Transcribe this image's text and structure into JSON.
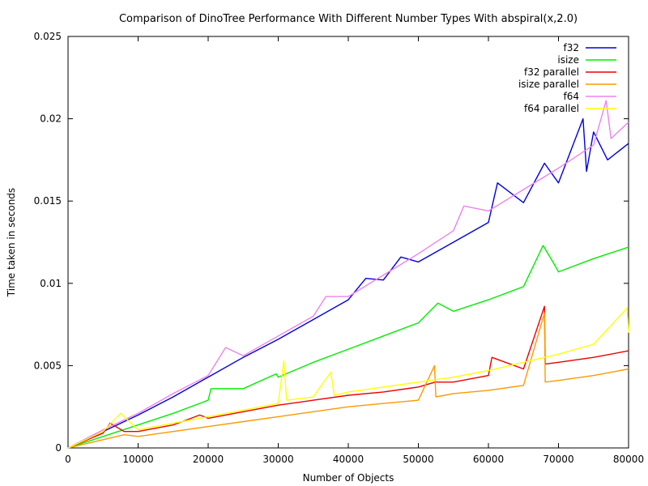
{
  "chart_data": {
    "type": "line",
    "title": "Comparison of DinoTree Performance With Different Number Types With abspiral(x,2.0)",
    "xlabel": "Number of Objects",
    "ylabel": "Time taken in seconds",
    "xlim": [
      0,
      80000
    ],
    "ylim": [
      0,
      0.025
    ],
    "xticks": [
      "0",
      "10000",
      "20000",
      "30000",
      "40000",
      "50000",
      "60000",
      "70000",
      "80000"
    ],
    "yticks": [
      "0",
      "0.005",
      "0.01",
      "0.015",
      "0.02",
      "0.025"
    ],
    "grid": false,
    "legend_position": "top-right",
    "series": [
      {
        "name": "f32",
        "color": "#0000dd",
        "x": [
          0,
          5000,
          10000,
          15000,
          20000,
          25000,
          30000,
          35000,
          40000,
          42500,
          45000,
          47500,
          50000,
          55000,
          60000,
          61300,
          65000,
          68000,
          70000,
          73500,
          74000,
          75000,
          77000,
          80000
        ],
        "y": [
          0,
          0.001,
          0.002,
          0.0031,
          0.0043,
          0.0055,
          0.0066,
          0.0078,
          0.009,
          0.0103,
          0.0102,
          0.0116,
          0.0113,
          0.0125,
          0.0137,
          0.0161,
          0.0149,
          0.0173,
          0.0161,
          0.02,
          0.0168,
          0.0192,
          0.0175,
          0.0185
        ]
      },
      {
        "name": "isize",
        "color": "#00ee00",
        "x": [
          0,
          5000,
          10000,
          15000,
          20000,
          20400,
          25000,
          29700,
          30000,
          35000,
          40000,
          45000,
          50000,
          52800,
          55000,
          60000,
          65000,
          67800,
          69200,
          70000,
          75000,
          80000
        ],
        "y": [
          0,
          0.0007,
          0.0014,
          0.0021,
          0.0029,
          0.0036,
          0.0036,
          0.0045,
          0.0043,
          0.0052,
          0.006,
          0.0068,
          0.0076,
          0.0088,
          0.0083,
          0.009,
          0.0098,
          0.0123,
          0.0113,
          0.0107,
          0.0115,
          0.0122
        ]
      },
      {
        "name": "f32 parallel",
        "color": "#ee0000",
        "x": [
          0,
          5000,
          6000,
          8000,
          10000,
          15000,
          18800,
          20000,
          25000,
          30000,
          35000,
          40000,
          45000,
          50000,
          52400,
          55000,
          60000,
          60500,
          65000,
          68000,
          68100,
          70000,
          75000,
          80000
        ],
        "y": [
          0,
          0.0009,
          0.0015,
          0.001,
          0.001,
          0.0014,
          0.002,
          0.0018,
          0.0022,
          0.0026,
          0.0029,
          0.0032,
          0.0034,
          0.0037,
          0.004,
          0.004,
          0.0044,
          0.0055,
          0.0048,
          0.0086,
          0.0051,
          0.0052,
          0.0055,
          0.0059
        ]
      },
      {
        "name": "isize parallel",
        "color": "#ff9900",
        "x": [
          0,
          5000,
          8000,
          10000,
          15000,
          20000,
          25000,
          30000,
          35000,
          40000,
          45000,
          50000,
          52300,
          52500,
          55000,
          60000,
          65000,
          68000,
          68100,
          70000,
          75000,
          80000
        ],
        "y": [
          0,
          0.0005,
          0.0008,
          0.0007,
          0.001,
          0.0013,
          0.0016,
          0.0019,
          0.0022,
          0.0025,
          0.0027,
          0.0029,
          0.005,
          0.0031,
          0.0033,
          0.0035,
          0.0038,
          0.0082,
          0.004,
          0.0041,
          0.0044,
          0.0048
        ]
      },
      {
        "name": "f64",
        "color": "#ee82ee",
        "x": [
          0,
          5000,
          10000,
          15000,
          20000,
          22500,
          25000,
          30000,
          35000,
          36800,
          40000,
          45000,
          50000,
          55000,
          56500,
          60000,
          65000,
          70000,
          75000,
          76800,
          77500,
          80000
        ],
        "y": [
          0,
          0.0011,
          0.0021,
          0.0033,
          0.0044,
          0.0061,
          0.0056,
          0.0068,
          0.008,
          0.0092,
          0.0092,
          0.0105,
          0.0118,
          0.0132,
          0.0147,
          0.0144,
          0.0157,
          0.017,
          0.0184,
          0.0211,
          0.0188,
          0.0198
        ]
      },
      {
        "name": "f64 parallel",
        "color": "#ffff00",
        "x": [
          0,
          5000,
          7500,
          10000,
          15000,
          20000,
          25000,
          30000,
          30800,
          31200,
          35000,
          37500,
          38000,
          40000,
          45000,
          50000,
          55000,
          60000,
          65000,
          70000,
          75000,
          79800,
          80000
        ],
        "y": [
          0,
          0.001,
          0.0021,
          0.0011,
          0.0015,
          0.0019,
          0.0023,
          0.0027,
          0.0053,
          0.0029,
          0.0031,
          0.0046,
          0.0032,
          0.0034,
          0.0037,
          0.004,
          0.0043,
          0.0047,
          0.0052,
          0.0057,
          0.0063,
          0.0085,
          0.007
        ]
      }
    ]
  }
}
